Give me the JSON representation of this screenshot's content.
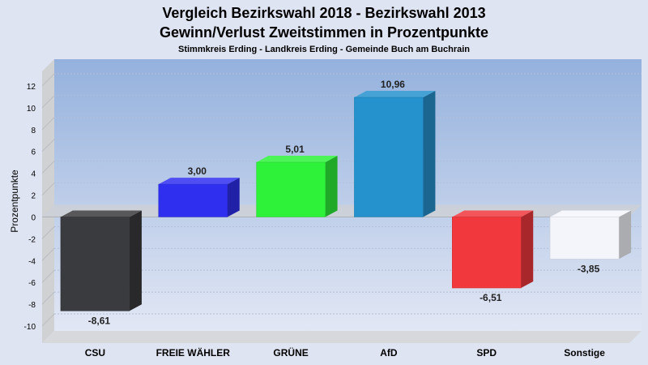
{
  "chart_data": {
    "type": "bar",
    "title": "Vergleich Bezirkswahl 2018 - Bezirkswahl 2013",
    "title2": "Gewinn/Verlust Zweitstimmen in Prozentpunkte",
    "subtitle": "Stimmkreis Erding - Landkreis Erding - Gemeinde Buch am Buchrain",
    "ylabel": "Prozentpunkte",
    "xlabel": "",
    "ylim": [
      -10,
      12
    ],
    "yticks": [
      -10,
      -8,
      -6,
      -4,
      -2,
      0,
      2,
      4,
      6,
      8,
      10,
      12
    ],
    "grid": true,
    "categories": [
      "CSU",
      "FREIE WÄHLER",
      "GRÜNE",
      "AfD",
      "SPD",
      "Sonstige"
    ],
    "values": [
      -8.61,
      3.0,
      5.01,
      10.96,
      -6.51,
      -3.85
    ],
    "value_labels": [
      "-8,61",
      "3,00",
      "5,01",
      "10,96",
      "-6,51",
      "-3,85"
    ],
    "colors": [
      "#3a3b3e",
      "#2f2ff0",
      "#2ef23a",
      "#2592cd",
      "#f0383d",
      "#f4f5fb"
    ]
  }
}
